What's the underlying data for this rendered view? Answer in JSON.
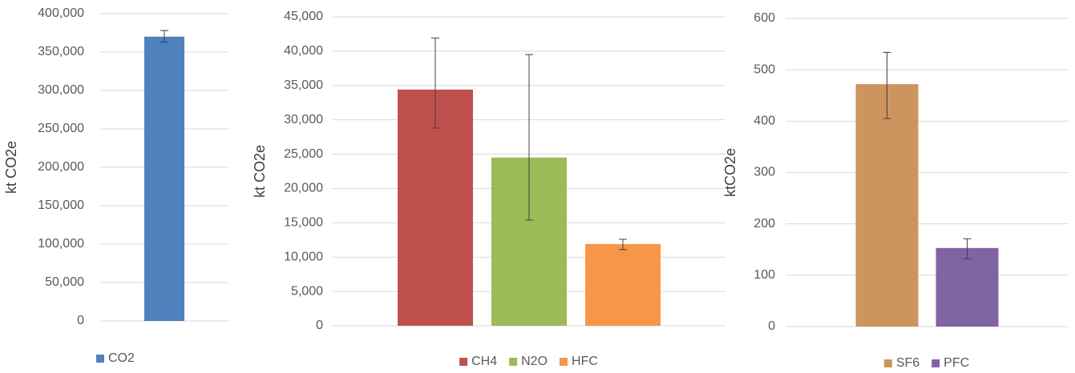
{
  "chart_data": [
    {
      "type": "bar",
      "ylabel": "kt CO2e",
      "series": [
        {
          "name": "CO2",
          "color": "#4f81bd",
          "values": [
            370000
          ],
          "error_low": [
            7000
          ],
          "error_high": [
            8000
          ]
        }
      ],
      "ylim": [
        0,
        400000
      ],
      "yticks": [
        {
          "value": 0,
          "label": "0"
        },
        {
          "value": 50000,
          "label": "50,000"
        },
        {
          "value": 100000,
          "label": "100,000"
        },
        {
          "value": 150000,
          "label": "150,000"
        },
        {
          "value": 200000,
          "label": "200,000"
        },
        {
          "value": 250000,
          "label": "250,000"
        },
        {
          "value": 300000,
          "label": "300,000"
        },
        {
          "value": 350000,
          "label": "350,000"
        },
        {
          "value": 400000,
          "label": "400,000"
        }
      ],
      "grid": true,
      "legend": "bottom"
    },
    {
      "type": "bar",
      "ylabel": "kt CO2e",
      "series": [
        {
          "name": "CH4",
          "color": "#c0504d",
          "values": [
            34400
          ],
          "error_low": [
            5600
          ],
          "error_high": [
            7500
          ]
        },
        {
          "name": "N2O",
          "color": "#9bbb59",
          "values": [
            24500
          ],
          "error_low": [
            9100
          ],
          "error_high": [
            15000
          ]
        },
        {
          "name": "HFC",
          "color": "#f79646",
          "values": [
            11900
          ],
          "error_low": [
            800
          ],
          "error_high": [
            700
          ]
        }
      ],
      "ylim": [
        0,
        45000
      ],
      "yticks": [
        {
          "value": 0,
          "label": "0"
        },
        {
          "value": 5000,
          "label": "5,000"
        },
        {
          "value": 10000,
          "label": "10,000"
        },
        {
          "value": 15000,
          "label": "15,000"
        },
        {
          "value": 20000,
          "label": "20,000"
        },
        {
          "value": 25000,
          "label": "25,000"
        },
        {
          "value": 30000,
          "label": "30,000"
        },
        {
          "value": 35000,
          "label": "35,000"
        },
        {
          "value": 40000,
          "label": "40,000"
        },
        {
          "value": 45000,
          "label": "45,000"
        }
      ],
      "grid": true,
      "legend": "bottom"
    },
    {
      "type": "bar",
      "ylabel": "ktCO2e",
      "series": [
        {
          "name": "SF6",
          "color": "#cc955e",
          "values": [
            472
          ],
          "error_low": [
            67
          ],
          "error_high": [
            62
          ]
        },
        {
          "name": "PFC",
          "color": "#8064a2",
          "values": [
            153
          ],
          "error_low": [
            21
          ],
          "error_high": [
            18
          ]
        }
      ],
      "ylim": [
        0,
        600
      ],
      "yticks": [
        0,
        100,
        200,
        300,
        400,
        500,
        600
      ],
      "grid": true,
      "legend": "bottom"
    }
  ]
}
